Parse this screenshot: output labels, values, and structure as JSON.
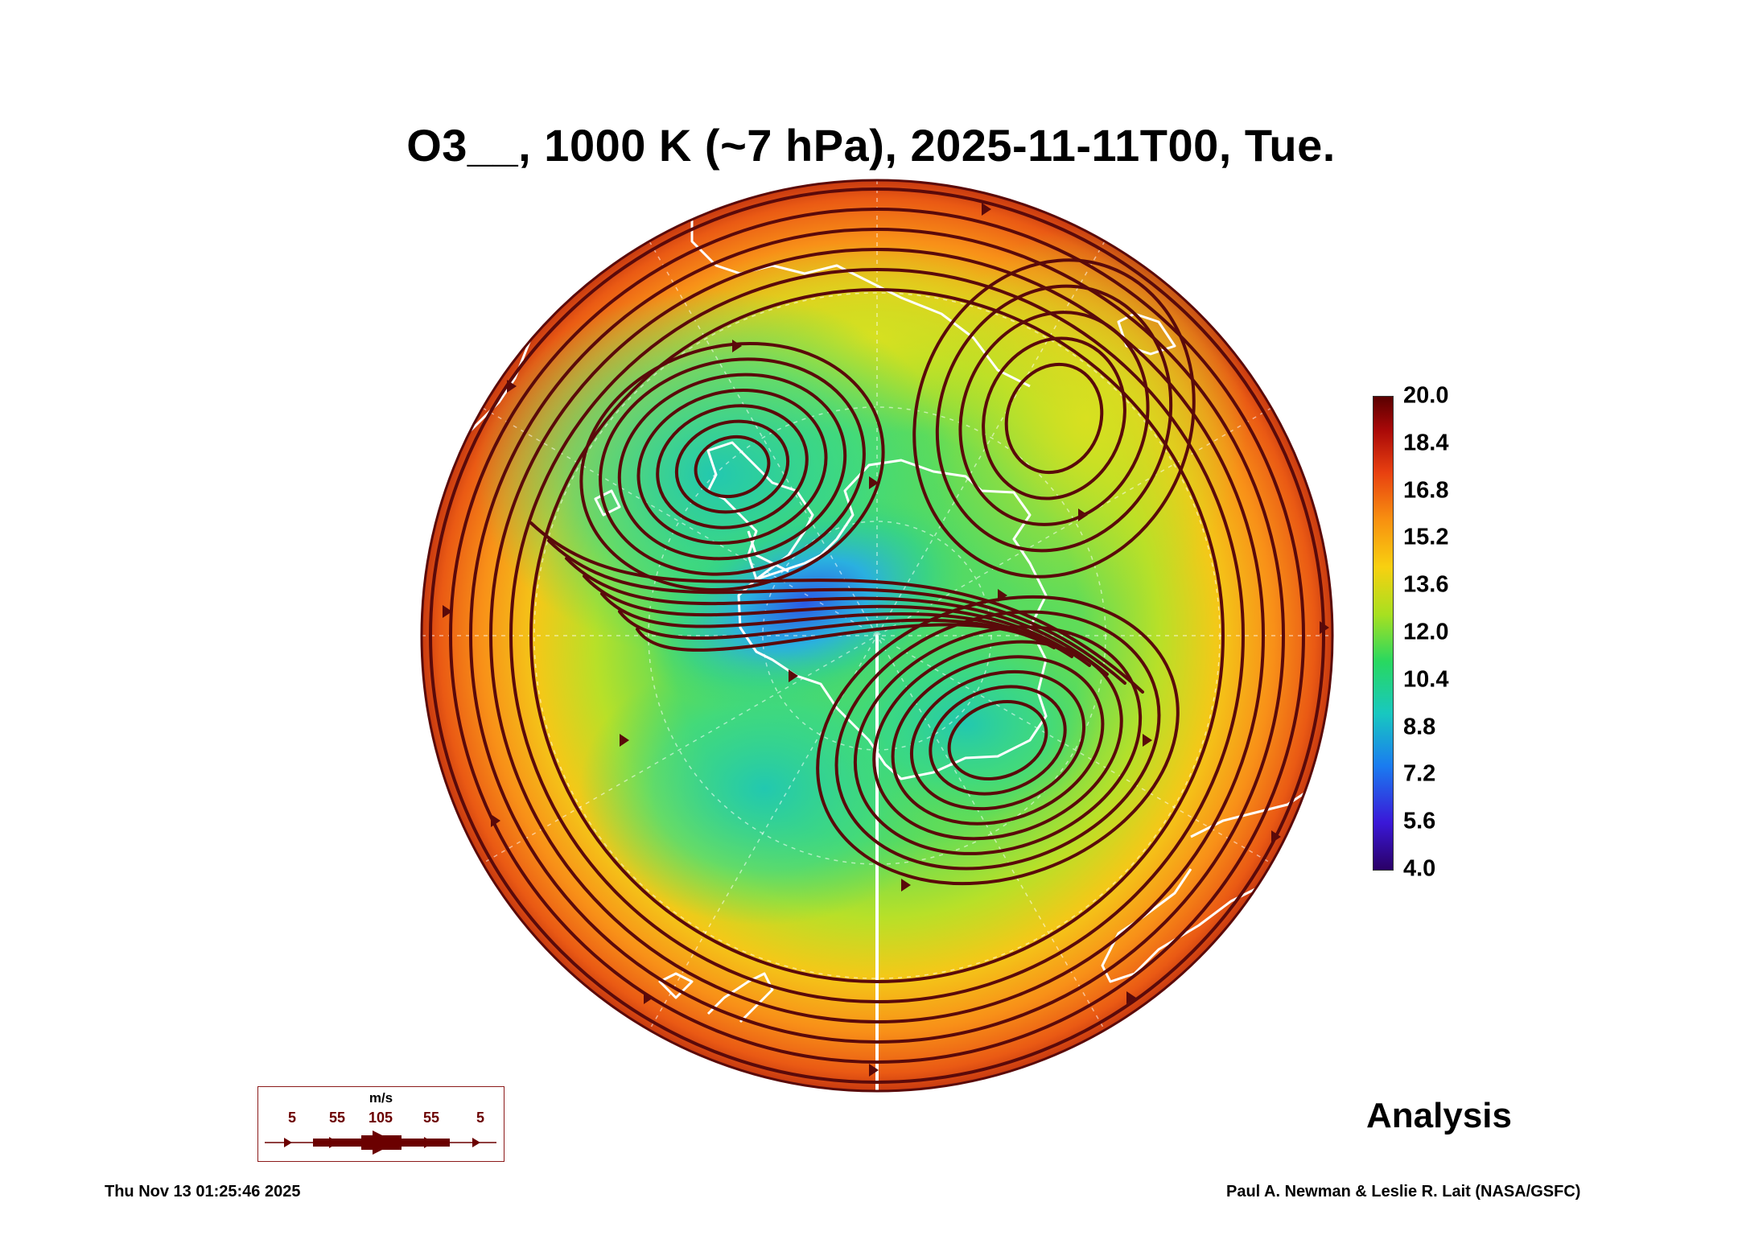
{
  "title": "O3__, 1000 K (~7 hPa), 2025-11-11T00, Tue.",
  "colorbar": {
    "ticks": [
      "20.0",
      "18.4",
      "16.8",
      "15.2",
      "13.6",
      "12.0",
      "10.4",
      "8.8",
      "7.2",
      "5.6",
      "4.0"
    ],
    "min": 4.0,
    "max": 20.0
  },
  "legend": {
    "unit": "m/s",
    "speeds": [
      "5",
      "55",
      "105",
      "55",
      "5"
    ]
  },
  "label_analysis": "Analysis",
  "footer": {
    "timestamp": "Thu Nov 13 01:25:46 2025",
    "credit": "Paul A. Newman & Leslie R. Lait (NASA/GSFC)"
  },
  "colors": {
    "streamline": "#5a0a0a",
    "coastline": "#ffffff",
    "high": "#e8501a",
    "mid": "#a8e020",
    "low": "#2060e0"
  }
}
